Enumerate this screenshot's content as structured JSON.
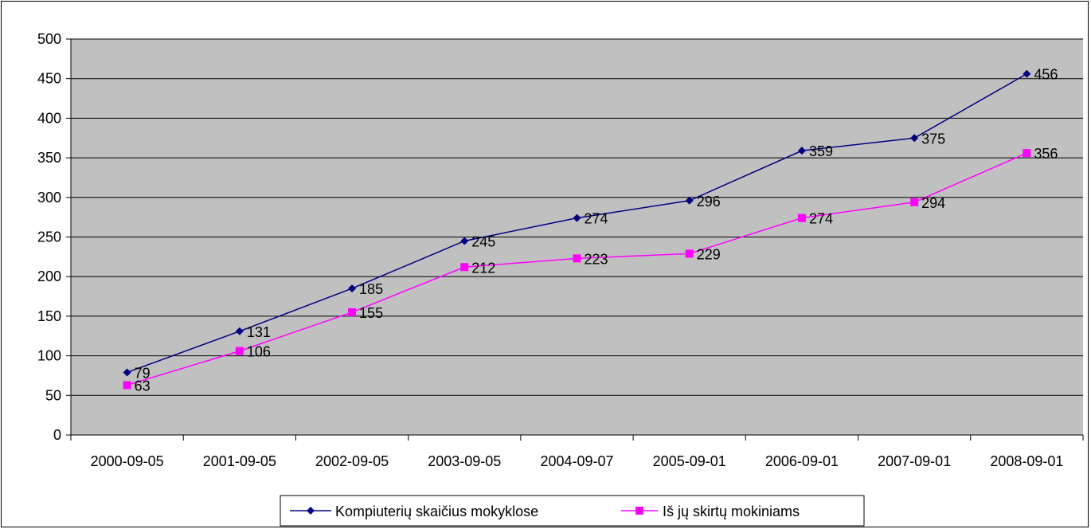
{
  "chart_data": {
    "type": "line",
    "title": "",
    "xlabel": "",
    "ylabel": "",
    "categories": [
      "2000-09-05",
      "2001-09-05",
      "2002-09-05",
      "2003-09-05",
      "2004-09-07",
      "2005-09-01",
      "2006-09-01",
      "2007-09-01",
      "2008-09-01"
    ],
    "ylim": [
      0,
      500
    ],
    "yticks": [
      "0",
      "50",
      "100",
      "150",
      "200",
      "250",
      "300",
      "350",
      "400",
      "450",
      "500"
    ],
    "grid": true,
    "legend_position": "bottom",
    "plot_background": "#c0c0c0",
    "series": [
      {
        "name": "Kompiuterių skaičius mokyklose",
        "color": "#000080",
        "marker": "diamond",
        "values": [
          79,
          131,
          185,
          245,
          274,
          296,
          359,
          375,
          456
        ]
      },
      {
        "name": "Iš jų skirtų mokiniams",
        "color": "#ff00ff",
        "marker": "square",
        "values": [
          63,
          106,
          155,
          212,
          223,
          229,
          274,
          294,
          356
        ]
      }
    ]
  }
}
